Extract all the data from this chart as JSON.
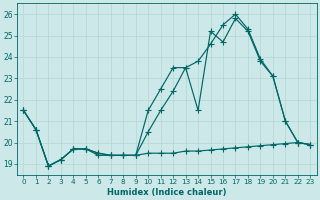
{
  "xlabel": "Humidex (Indice chaleur)",
  "bg_color": "#cce8e8",
  "grid_color": "#d8eaea",
  "line_color": "#006666",
  "xlim": [
    -0.5,
    23.5
  ],
  "ylim": [
    18.5,
    26.5
  ],
  "xticks": [
    0,
    1,
    2,
    3,
    4,
    5,
    6,
    7,
    8,
    9,
    10,
    11,
    12,
    13,
    14,
    15,
    16,
    17,
    18,
    19,
    20,
    21,
    22,
    23
  ],
  "yticks": [
    19,
    20,
    21,
    22,
    23,
    24,
    25,
    26
  ],
  "line1_x": [
    0,
    1,
    2,
    3,
    4,
    5,
    6,
    7,
    8,
    9,
    10,
    11,
    12,
    13,
    14,
    15,
    16,
    17,
    18,
    19,
    20,
    21,
    22,
    23
  ],
  "line1_y": [
    21.5,
    20.6,
    18.9,
    19.2,
    19.7,
    19.7,
    19.5,
    19.4,
    19.4,
    19.4,
    20.5,
    21.5,
    22.4,
    23.5,
    21.5,
    25.2,
    24.7,
    25.8,
    25.2,
    23.8,
    23.1,
    21.0,
    20.0,
    19.9
  ],
  "line2_x": [
    0,
    1,
    2,
    3,
    4,
    5,
    6,
    7,
    8,
    9,
    10,
    11,
    12,
    13,
    14,
    15,
    16,
    17,
    18,
    19,
    20,
    21,
    22,
    23
  ],
  "line2_y": [
    21.5,
    20.6,
    18.9,
    19.2,
    19.7,
    19.7,
    19.5,
    19.4,
    19.4,
    19.4,
    21.5,
    22.5,
    23.5,
    23.5,
    23.8,
    24.6,
    25.5,
    26.0,
    25.3,
    23.9,
    23.1,
    21.0,
    20.0,
    19.9
  ],
  "line3_x": [
    0,
    1,
    2,
    3,
    4,
    5,
    6,
    7,
    8,
    9,
    10,
    11,
    12,
    13,
    14,
    15,
    16,
    17,
    18,
    19,
    20,
    21,
    22,
    23
  ],
  "line3_y": [
    21.5,
    20.6,
    18.9,
    19.2,
    19.7,
    19.7,
    19.4,
    19.4,
    19.4,
    19.4,
    19.5,
    19.5,
    19.5,
    19.6,
    19.6,
    19.65,
    19.7,
    19.75,
    19.8,
    19.85,
    19.9,
    19.95,
    20.0,
    19.9
  ]
}
